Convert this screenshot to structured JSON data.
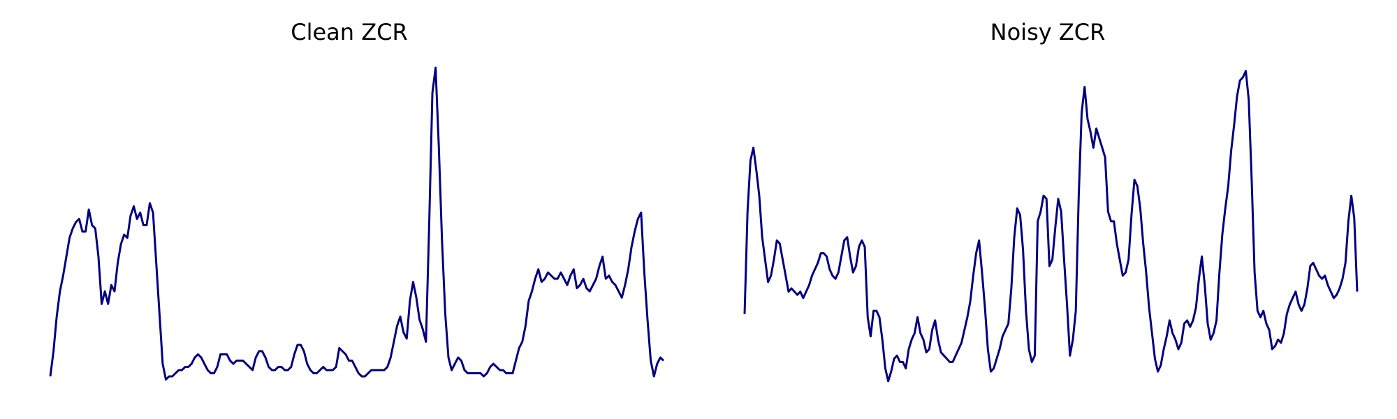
{
  "style": {
    "line_color": "#000080",
    "background": "#ffffff"
  },
  "chart_data": [
    {
      "type": "line",
      "title": "Clean ZCR",
      "axes_visible": false,
      "grid": false,
      "ylim": [
        0,
        1
      ],
      "series": [
        {
          "values": [
            0.02,
            0.1,
            0.21,
            0.29,
            0.34,
            0.4,
            0.46,
            0.49,
            0.51,
            0.52,
            0.48,
            0.48,
            0.55,
            0.5,
            0.49,
            0.4,
            0.25,
            0.29,
            0.25,
            0.31,
            0.29,
            0.38,
            0.44,
            0.47,
            0.46,
            0.53,
            0.56,
            0.52,
            0.54,
            0.5,
            0.5,
            0.57,
            0.54,
            0.38,
            0.22,
            0.06,
            0.01,
            0.02,
            0.02,
            0.03,
            0.04,
            0.04,
            0.05,
            0.05,
            0.06,
            0.08,
            0.09,
            0.08,
            0.06,
            0.04,
            0.03,
            0.03,
            0.05,
            0.09,
            0.09,
            0.09,
            0.07,
            0.06,
            0.07,
            0.07,
            0.07,
            0.06,
            0.05,
            0.04,
            0.08,
            0.1,
            0.1,
            0.08,
            0.05,
            0.04,
            0.04,
            0.05,
            0.05,
            0.04,
            0.04,
            0.05,
            0.09,
            0.12,
            0.12,
            0.1,
            0.06,
            0.04,
            0.03,
            0.03,
            0.04,
            0.05,
            0.04,
            0.04,
            0.04,
            0.05,
            0.11,
            0.1,
            0.09,
            0.07,
            0.07,
            0.05,
            0.03,
            0.02,
            0.02,
            0.03,
            0.04,
            0.04,
            0.04,
            0.04,
            0.04,
            0.05,
            0.08,
            0.13,
            0.18,
            0.21,
            0.16,
            0.14,
            0.26,
            0.32,
            0.27,
            0.2,
            0.17,
            0.13,
            0.5,
            0.92,
            1.0,
            0.75,
            0.45,
            0.22,
            0.08,
            0.04,
            0.06,
            0.08,
            0.07,
            0.04,
            0.03,
            0.03,
            0.03,
            0.03,
            0.03,
            0.02,
            0.03,
            0.05,
            0.06,
            0.05,
            0.04,
            0.04,
            0.03,
            0.03,
            0.03,
            0.07,
            0.11,
            0.13,
            0.18,
            0.26,
            0.29,
            0.33,
            0.36,
            0.32,
            0.33,
            0.35,
            0.34,
            0.33,
            0.33,
            0.35,
            0.33,
            0.31,
            0.34,
            0.36,
            0.3,
            0.31,
            0.33,
            0.3,
            0.29,
            0.31,
            0.33,
            0.37,
            0.4,
            0.33,
            0.34,
            0.32,
            0.31,
            0.29,
            0.27,
            0.31,
            0.36,
            0.43,
            0.48,
            0.52,
            0.54,
            0.35,
            0.2,
            0.07,
            0.02,
            0.06,
            0.08,
            0.07
          ]
        }
      ]
    },
    {
      "type": "line",
      "title": "Noisy ZCR",
      "axes_visible": false,
      "grid": false,
      "ylim": [
        0,
        1
      ],
      "series": [
        {
          "values": [
            0.23,
            0.55,
            0.71,
            0.75,
            0.68,
            0.6,
            0.47,
            0.4,
            0.33,
            0.35,
            0.4,
            0.46,
            0.45,
            0.4,
            0.35,
            0.3,
            0.31,
            0.3,
            0.29,
            0.3,
            0.28,
            0.3,
            0.32,
            0.35,
            0.37,
            0.39,
            0.42,
            0.42,
            0.41,
            0.37,
            0.35,
            0.34,
            0.36,
            0.41,
            0.46,
            0.47,
            0.41,
            0.36,
            0.38,
            0.44,
            0.46,
            0.44,
            0.22,
            0.16,
            0.24,
            0.24,
            0.22,
            0.15,
            0.06,
            0.02,
            0.05,
            0.09,
            0.1,
            0.08,
            0.08,
            0.06,
            0.12,
            0.15,
            0.17,
            0.22,
            0.17,
            0.15,
            0.11,
            0.12,
            0.18,
            0.21,
            0.15,
            0.11,
            0.1,
            0.09,
            0.08,
            0.08,
            0.1,
            0.12,
            0.14,
            0.18,
            0.22,
            0.27,
            0.35,
            0.42,
            0.46,
            0.36,
            0.25,
            0.12,
            0.05,
            0.06,
            0.09,
            0.12,
            0.16,
            0.18,
            0.2,
            0.31,
            0.47,
            0.56,
            0.54,
            0.43,
            0.24,
            0.12,
            0.08,
            0.1,
            0.52,
            0.55,
            0.6,
            0.59,
            0.38,
            0.4,
            0.5,
            0.59,
            0.55,
            0.4,
            0.26,
            0.1,
            0.15,
            0.24,
            0.6,
            0.86,
            0.94,
            0.84,
            0.8,
            0.75,
            0.81,
            0.78,
            0.75,
            0.72,
            0.55,
            0.52,
            0.52,
            0.45,
            0.4,
            0.35,
            0.36,
            0.4,
            0.54,
            0.65,
            0.63,
            0.56,
            0.45,
            0.36,
            0.25,
            0.17,
            0.09,
            0.05,
            0.07,
            0.12,
            0.16,
            0.21,
            0.17,
            0.15,
            0.12,
            0.14,
            0.2,
            0.21,
            0.19,
            0.21,
            0.25,
            0.34,
            0.41,
            0.32,
            0.2,
            0.15,
            0.17,
            0.21,
            0.36,
            0.48,
            0.56,
            0.63,
            0.74,
            0.82,
            0.91,
            0.96,
            0.97,
            0.99,
            0.9,
            0.65,
            0.36,
            0.24,
            0.22,
            0.24,
            0.2,
            0.18,
            0.12,
            0.13,
            0.15,
            0.14,
            0.17,
            0.23,
            0.26,
            0.28,
            0.3,
            0.26,
            0.24,
            0.26,
            0.31,
            0.38,
            0.39,
            0.37,
            0.35,
            0.34,
            0.35,
            0.32,
            0.3,
            0.28,
            0.29,
            0.31,
            0.34,
            0.39,
            0.52,
            0.6,
            0.53,
            0.3
          ]
        }
      ]
    }
  ]
}
